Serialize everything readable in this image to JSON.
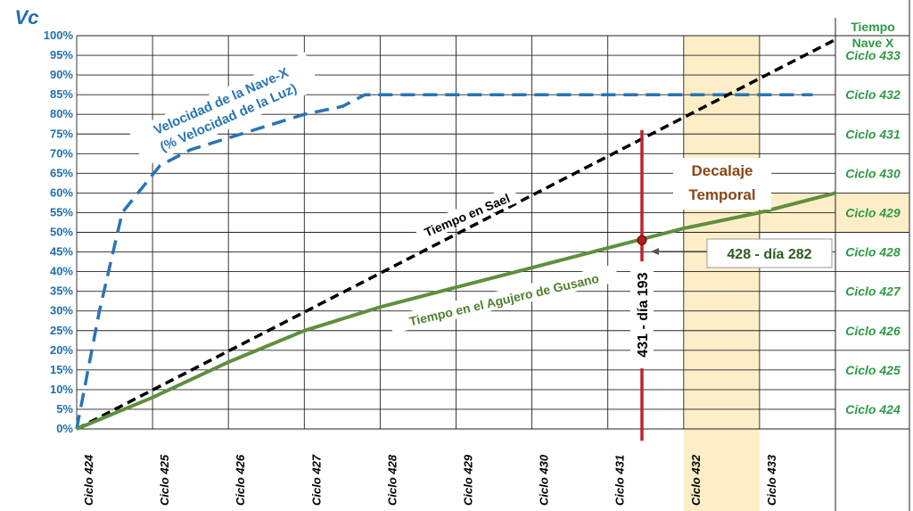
{
  "chart_data": {
    "type": "line",
    "y_axis_title": "Vc",
    "right_axis_title_line1": "Tiempo",
    "right_axis_title_line2": "Nave X",
    "y_ticks": [
      "0%",
      "5%",
      "10%",
      "15%",
      "20%",
      "25%",
      "30%",
      "35%",
      "40%",
      "45%",
      "50%",
      "55%",
      "60%",
      "65%",
      "70%",
      "75%",
      "80%",
      "85%",
      "90%",
      "95%",
      "100%"
    ],
    "x_ticks": [
      "Ciclo 424",
      "Ciclo 425",
      "Ciclo 426",
      "Ciclo 427",
      "Ciclo 428",
      "Ciclo 429",
      "Ciclo 430",
      "Ciclo 431",
      "Ciclo 432",
      "Ciclo 433"
    ],
    "right_ticks": [
      "Ciclo 424",
      "Ciclo 425",
      "Ciclo 426",
      "Ciclo 427",
      "Ciclo 428",
      "Ciclo 429",
      "Ciclo 430",
      "Ciclo 431",
      "Ciclo 432",
      "Ciclo 433"
    ],
    "xlim": [
      424,
      434
    ],
    "ylim": [
      0,
      100
    ],
    "grid": true,
    "highlight_band": {
      "x": [
        432,
        433
      ],
      "color": "#fdeec8"
    },
    "highlight_right_tick": "Ciclo 429",
    "series": [
      {
        "name": "Velocidad de la Nave-X",
        "name_line2": "(% Velocidad de la Luz)",
        "style": "dashed",
        "color": "#2874b5",
        "points": [
          [
            424,
            0
          ],
          [
            424.3,
            30
          ],
          [
            424.6,
            55
          ],
          [
            425.1,
            67
          ],
          [
            425.5,
            71
          ],
          [
            426,
            74
          ],
          [
            426.5,
            77
          ],
          [
            427,
            80
          ],
          [
            427.5,
            82
          ],
          [
            427.8,
            85
          ],
          [
            428,
            85
          ],
          [
            429,
            85
          ],
          [
            430,
            85
          ],
          [
            431,
            85
          ],
          [
            432,
            85
          ],
          [
            433,
            85
          ],
          [
            433.7,
            85
          ]
        ]
      },
      {
        "name": "Tiempo en Sael",
        "style": "dashed",
        "color": "#000000",
        "points": [
          [
            424,
            0
          ],
          [
            434,
            99
          ]
        ]
      },
      {
        "name": "Tiempo en el Agujero de Gusano",
        "style": "solid",
        "color": "#5f8f3e",
        "points": [
          [
            424,
            0
          ],
          [
            425,
            8
          ],
          [
            426,
            17
          ],
          [
            427,
            25
          ],
          [
            428,
            31
          ],
          [
            429,
            36
          ],
          [
            430,
            41
          ],
          [
            431,
            46
          ],
          [
            432,
            51
          ],
          [
            433,
            55
          ],
          [
            434,
            60
          ]
        ]
      }
    ],
    "marker_line": {
      "x": 431.45,
      "from": -3,
      "to": 76,
      "color": "#c0232b",
      "label": "431 - día 193"
    },
    "intersection_point": {
      "x": 431.45,
      "y": 48
    },
    "annotations": {
      "decalaje_line1": "Decalaje",
      "decalaje_line2": "Temporal",
      "callout": "428 - día 282"
    }
  }
}
